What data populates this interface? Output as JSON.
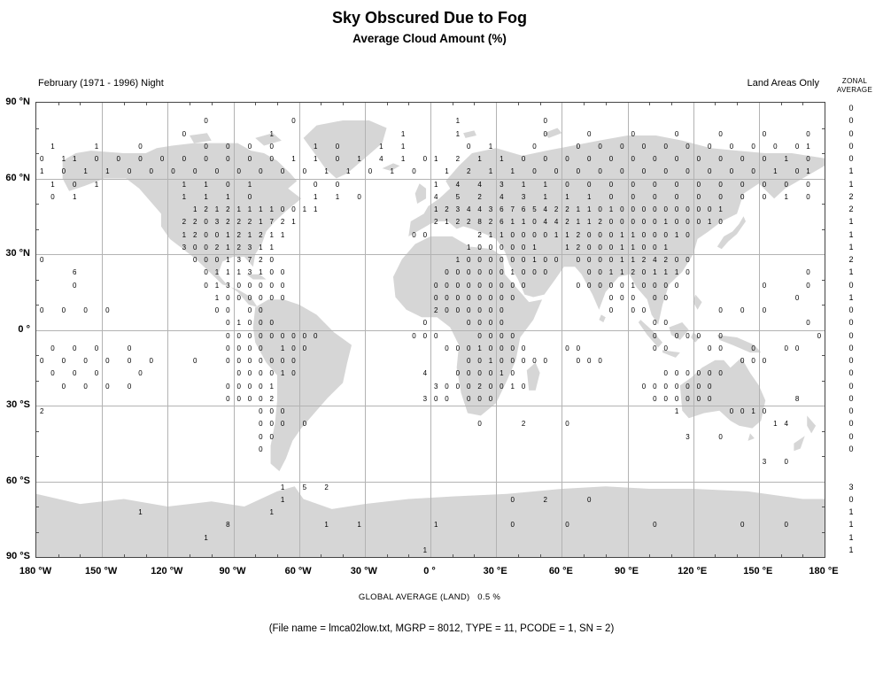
{
  "chart_data": {
    "type": "heatmap",
    "title": "Sky Obscured Due to Fog",
    "subtitle": "Average Cloud Amount (%)",
    "period_label": "February (1971 - 1996) Night",
    "coverage_label": "Land Areas Only",
    "zonal_header": [
      "ZONAL",
      "AVERAGE"
    ],
    "lat_ticks": [
      "90 °N",
      "60 °N",
      "30 °N",
      "0 °",
      "30 °S",
      "60 °S",
      "90 °S"
    ],
    "lon_ticks": [
      "180 °W",
      "150 °W",
      "120 °W",
      "90 °W",
      "60 °W",
      "30 °W",
      "0 °",
      "30 °E",
      "60 °E",
      "90 °E",
      "120 °E",
      "150 °E",
      "180 °E"
    ],
    "grid_step_deg": 30,
    "cell_deg": 5,
    "lat_start": 87.5,
    "lon_start": -177.5,
    "grid": true,
    "rows": [
      "........................................................................",
      "...............0.......0..............1.......0........................",
      ".............0.......1...........1....1.......0...0...0...0...0...0...0",
      ".1...1...0.....0.0.0.0...1.0...1.1.....0.1...0...0.0.0.0.0.0.0.0.0.0.01.",
      "0.11.0.0.0.0.0.0.0.0.0.1.1.0.1.4.1.01.2.1.1.0.0.0.0.0.0.0.0.0.0.0.0.1.0.",
      "1.0.1.1.0.0.0.0.0.0.0.0.0.1.1.0.1.0..1.2.1.1.0.0.0.0.0.0.0.0.0.0.0.1.01.",
      ".1.0.1.......1.1.0.1.....0.0........1.4.4.3.1.1.0.0.0.0.0.0.0.0.0.0.0.0.",
      ".0.1.........1.1.1.0.....1.1.0......4.5.2.4.3.1.1.1.0.0.0.0.0.0.0.0.1.0.",
      "..............1212111100",
      "............",
      "............",
      "............",
      "0...........",
      "...6........",
      "...0........",
      "............",
      "0.0.0.0.....",
      "............",
      "............",
      ".0.0.0..0...",
      "0.0.0.0.0.0.",
      ".0.0.0...0..",
      "..0.0.0.0...",
      "............",
      "2...........",
      "............",
      "............",
      "............",
      "............",
      "............",
      "............",
      "............",
      ".........1..",
      "............",
      "............",
      "............"
    ],
    "rows_full": [
      "........................................................................",
      "...............0.......0..............1.......0........................",
      ".............0.......1...........1....1.......0...0...0...0...0...0...0",
      ".1...1...0.....0.0.0.0...1.0...1.1.....0.1...0...0.0.0.0.0.0.0.0.0.0.01.",
      "0.11.0.0.0.0.0.0.0.0.0.1.1.0.1.4.1.01.2.1.1.0.0.0.0.0.0.0.0.0.0.0.0.1.0.",
      "1.0.1.1.0.0.0.0.0.0.0.0.0.1.1.0.1.0..1.2.1.1.0.0.0.0.0.0.0.0.0.0.0.1.01.",
      ".1.0.1.......1.1.0.1.....0.0........1.4.4.3.1.1.0.0.0.0.0.0.0.0.0.0.0.0.",
      ".0.1.........1.1.1.0.....1.1.0......4.5.2.4.3.1.1.1.0.0.0.0.0.0.0.0.1.0.",
      "..............121211110011..........123443676542211010000000001.........",
      ".............22032221721............212282611044211200000100010.........",
      ".............1200121211...........00....21100001120001100010............",
      ".............300212311.................1000001  1200011001..............",
      "0.............00013720................1000000100 00001124200............",
      "...6...........01113100..............0000001000...0011201110..........0.",
      "...0...........01300000.............000000000....0000010000.......0...0.",
      "................1000000.............00000000........000.00...........0..",
      "0.0.0.0.........00.00...............2000000.........0.00......0.0.0.....",
      ".................01000.............0...0000.............00............0.",
      ".................000000000........000...0000............0.000.0........0",
      ".0.0.0..0........0000.100............00010000...00......00...00..0..00..",
      "0.0.0.0.0.0...0..0000000...............00100000..000............000.....",
      ".0.0.0...0........000010...........4..000010.............000000.........",
      "..0.0.0.0........00001..............300020010..........0000000.........",
      ".................00002.............300.000..............000000.......8.",
      "2...................000...................................1....0010.....",
      "....................000.0...............0...2...0..................14.",
      "....................00.....................................3..0..",
      "....................0...........................................",
      "..................................................................3.0...",
      "........................................................................",
      "......................1.5.2.............................................",
      "......................1....................0..2...0.....................",
      ".........1...........1..................................................",
      ".................8........1..1......1......0....0.......0.......0...0..",
      "...............1........................................................",
      "...................................1...................................."
    ],
    "zonal_average": [
      "0",
      "0",
      "0",
      "0",
      "0",
      "1",
      "1",
      "2",
      "2",
      "1",
      "1",
      "1",
      "2",
      "1",
      "0",
      "1",
      "0",
      "0",
      "0",
      "0",
      "0",
      "0",
      "0",
      "0",
      "0",
      "0",
      "0",
      "0",
      "",
      "",
      "3",
      "0",
      "1",
      "1",
      "1",
      "1"
    ],
    "global_average_label": "GLOBAL AVERAGE (LAND)   0.5 %"
  },
  "footer": {
    "file_info": "(File name = lmca02low.txt, MGRP = 8012, TYPE = 11, PCODE = 1, SN = 2)"
  }
}
